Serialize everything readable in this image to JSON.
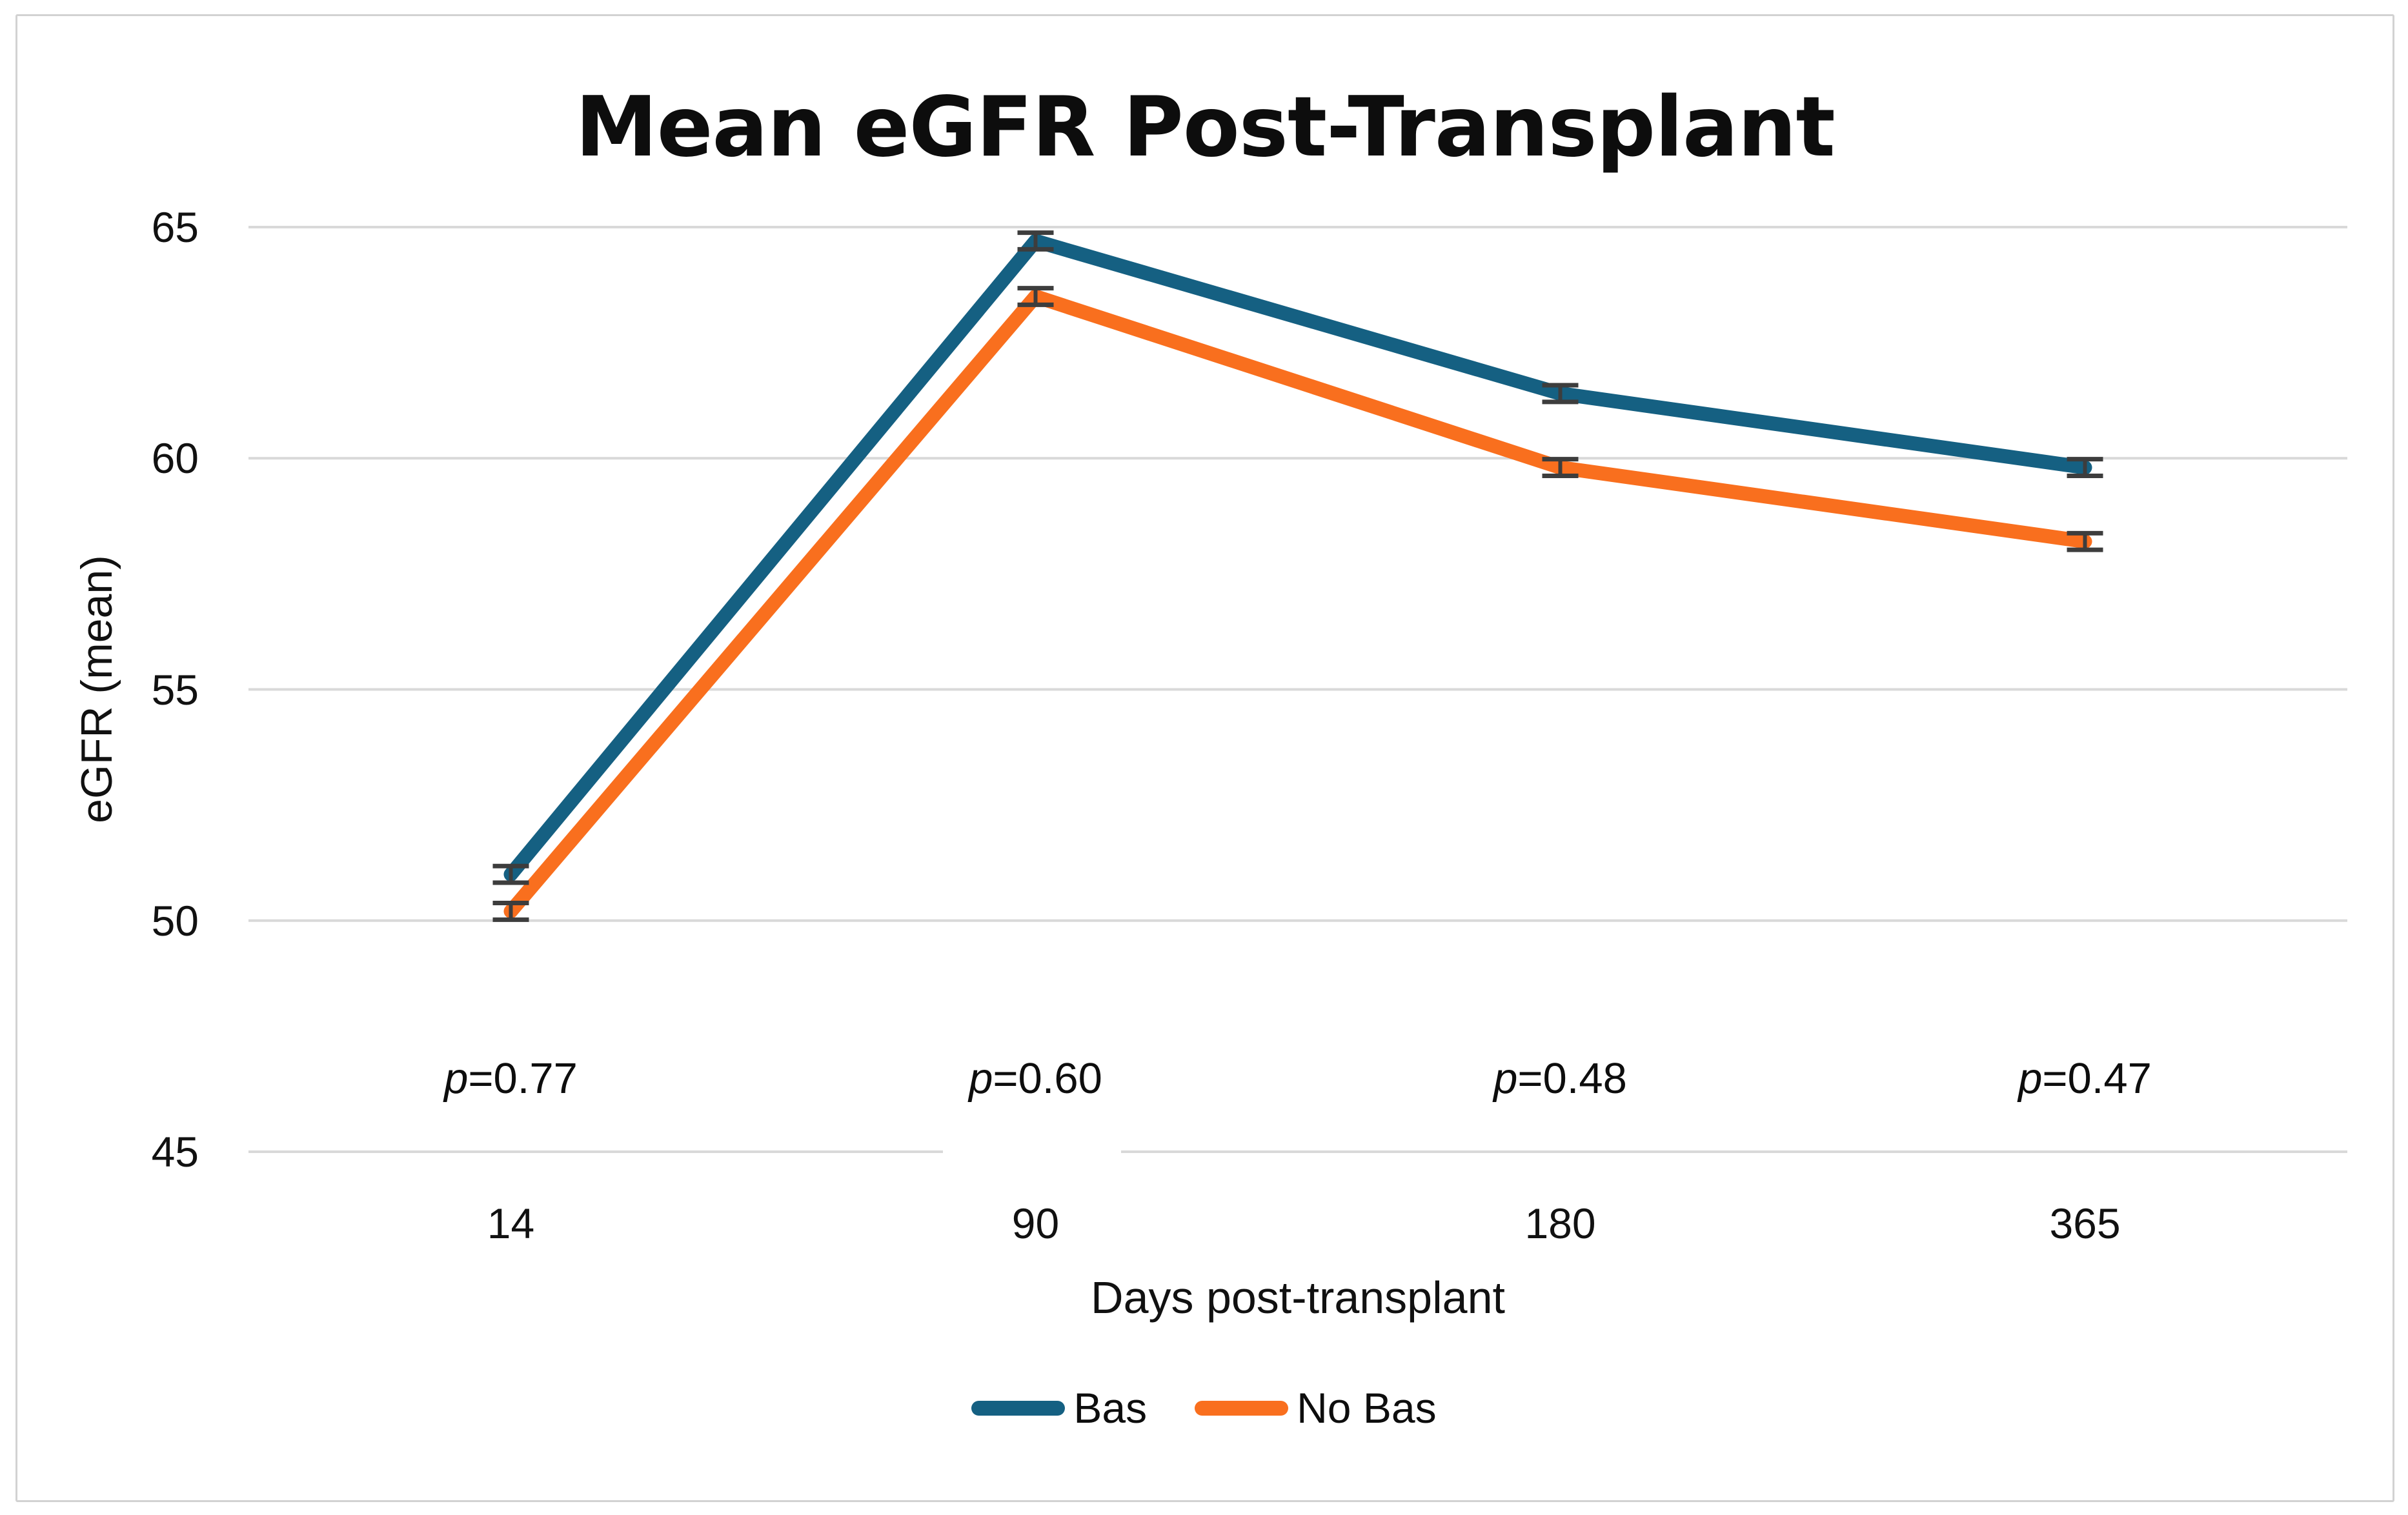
{
  "chart_data": {
    "type": "line",
    "title": "Mean eGFR Post-Transplant",
    "xlabel": "Days post-transplant",
    "ylabel": "eGFR (mean)",
    "categories": [
      "14",
      "90",
      "180",
      "365"
    ],
    "yticks": [
      45,
      50,
      55,
      60,
      65
    ],
    "ylim": [
      45,
      65
    ],
    "grid": "horizontal-only",
    "legend_position": "bottom-center",
    "series": [
      {
        "name": "Bas",
        "color": "#156082",
        "values": [
          51.0,
          64.7,
          61.4,
          59.8
        ],
        "error": [
          0.18,
          0.18,
          0.18,
          0.18
        ]
      },
      {
        "name": "No Bas",
        "color": "#F96F1E",
        "values": [
          50.2,
          63.5,
          59.8,
          58.2
        ],
        "error": [
          0.18,
          0.18,
          0.18,
          0.18
        ]
      }
    ],
    "annotations": [
      {
        "symbol": "p",
        "text": "=0.77"
      },
      {
        "symbol": "p",
        "text": "=0.60"
      },
      {
        "symbol": "p",
        "text": "=0.48"
      },
      {
        "symbol": "p",
        "text": "=0.47"
      }
    ],
    "colors": {
      "gridline": "#D9D9D9",
      "error_bar": "#3d3d3d",
      "text": "#111111",
      "frame_border": "#D2D2D2",
      "background": "#FFFFFF"
    }
  }
}
